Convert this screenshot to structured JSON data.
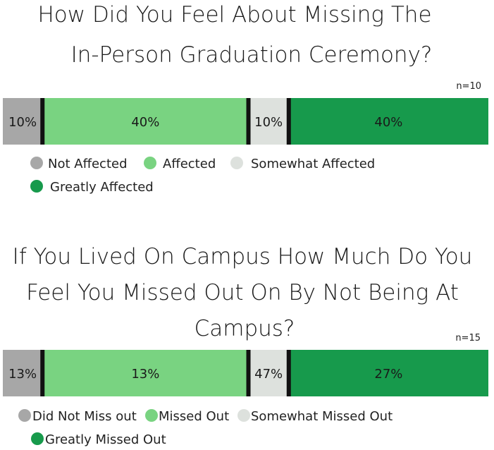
{
  "chart_data": [
    {
      "type": "bar",
      "orientation": "stacked-horizontal",
      "title_lines": [
        "How Did You Feel About Missing The",
        "In-Person Graduation Ceremony?"
      ],
      "n_label": "n=10",
      "series": [
        {
          "name": "Not Affected",
          "value": 10,
          "label": "10%",
          "color": "#a7a7a7"
        },
        {
          "name": "Affected",
          "value": 40,
          "label": "40%",
          "color": "#79d381"
        },
        {
          "name": "Somewhat Affected",
          "value": 10,
          "label": "10%",
          "color": "#dde1dd"
        },
        {
          "name": "Greatly Affected",
          "value": 40,
          "label": "40%",
          "color": "#179a4c"
        }
      ],
      "legend_placement": "bottom"
    },
    {
      "type": "bar",
      "orientation": "stacked-horizontal",
      "title_lines": [
        "If You Lived On Campus How Much Do You",
        "Feel You Missed Out On By Not Being At",
        "Campus?"
      ],
      "n_label": "n=15",
      "series": [
        {
          "name": "Did Not Miss out",
          "value": 13,
          "label": "13%",
          "color": "#a7a7a7"
        },
        {
          "name": "Missed Out",
          "value": 13,
          "label": "13%",
          "color": "#79d381"
        },
        {
          "name": "Somewhat Missed Out",
          "value": 47,
          "label": "47%",
          "color": "#dde1dd"
        },
        {
          "name": "Greatly Missed Out",
          "value": 27,
          "label": "27%",
          "color": "#179a4c"
        }
      ],
      "legend_placement": "bottom"
    }
  ]
}
